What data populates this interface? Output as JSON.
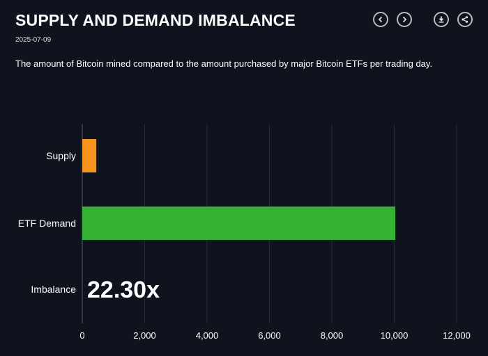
{
  "header": {
    "title": "SUPPLY AND DEMAND IMBALANCE",
    "date": "2025-07-09",
    "subtitle": "The amount of Bitcoin mined compared to the amount purchased by major Bitcoin ETFs per trading day.",
    "icons": [
      "chevron-left-icon",
      "chevron-right-icon",
      "download-icon",
      "share-icon"
    ]
  },
  "chart_data": {
    "type": "bar",
    "orientation": "horizontal",
    "categories": [
      "Supply",
      "ETF Demand",
      "Imbalance"
    ],
    "values": [
      450,
      10035,
      null
    ],
    "colors": [
      "#f7931a",
      "#33b233",
      null
    ],
    "annotation": "22.30x",
    "xlim": [
      0,
      12000
    ],
    "xticks": [
      "0",
      "2,000",
      "4,000",
      "6,000",
      "8,000",
      "10,000",
      "12,000"
    ],
    "grid": true
  }
}
